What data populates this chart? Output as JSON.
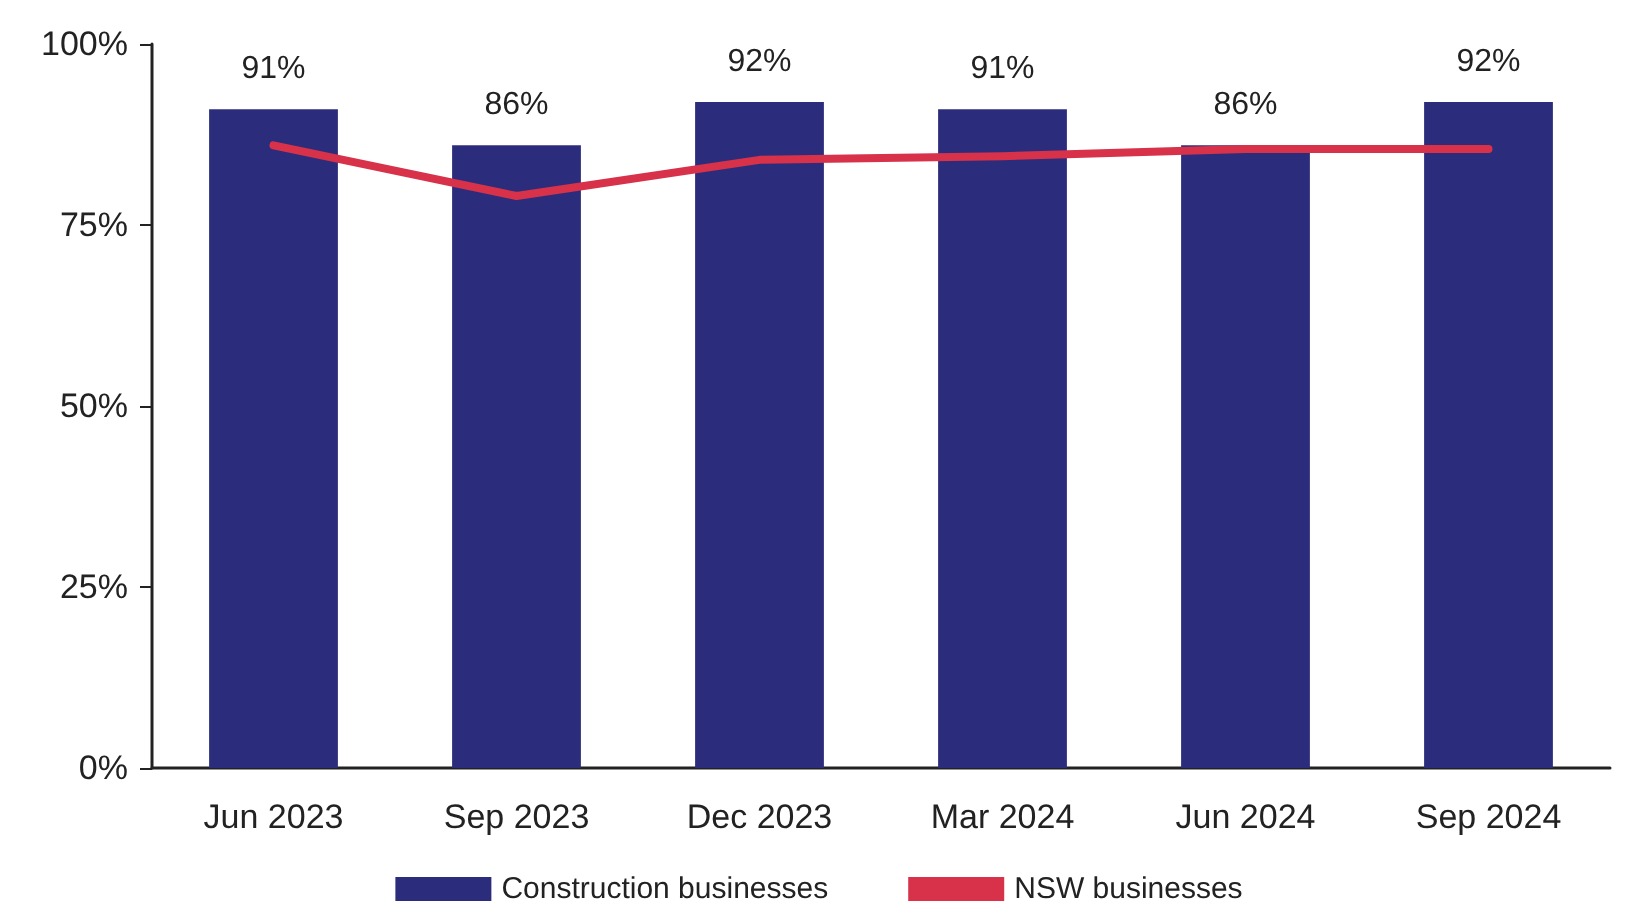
{
  "chart_data": {
    "type": "bar",
    "categories": [
      "Jun 2023",
      "Sep 2023",
      "Dec 2023",
      "Mar 2024",
      "Jun 2024",
      "Sep 2024"
    ],
    "series": [
      {
        "name": "Construction businesses",
        "color": "#2b2d7c",
        "values": [
          91,
          86,
          92,
          91,
          86,
          92
        ],
        "value_labels": [
          "91%",
          "86%",
          "92%",
          "91%",
          "86%",
          "92%"
        ]
      },
      {
        "name": "NSW businesses",
        "type": "line",
        "color": "#d8314a",
        "values": [
          86,
          79,
          84,
          84.5,
          85.5,
          85.5
        ]
      }
    ],
    "ylim": [
      0,
      100
    ],
    "yticks": [
      {
        "value": 0,
        "label": "0%"
      },
      {
        "value": 25,
        "label": "25%"
      },
      {
        "value": 50,
        "label": "50%"
      },
      {
        "value": 75,
        "label": "75%"
      },
      {
        "value": 100,
        "label": "100%"
      }
    ],
    "grid": false,
    "legend": "bottom",
    "marker": "none"
  }
}
